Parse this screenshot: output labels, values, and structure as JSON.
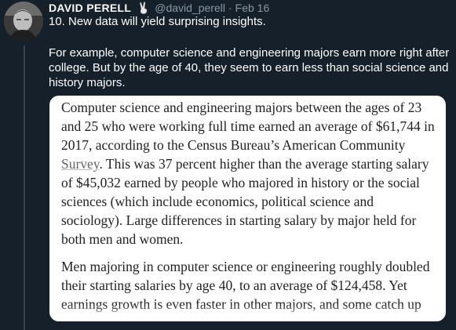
{
  "tweet": {
    "author_name": "DAVID PERELL",
    "author_emoji": "victory-hand-icon",
    "handle": "@david_perell",
    "separator": "·",
    "date": "Feb 16",
    "line1": "10. New data will yield surprising insights.",
    "line2": "For example, computer science and engineering majors earn more right after college. But by the age of 40, they seem to earn less than social science and history majors."
  },
  "article": {
    "para1_a": "Computer science and engineering majors between the ages of 23 and 25 who were working full time earned an average of $61,744 in 2017, according to the Census Bureau’s American Community ",
    "para1_link": "Survey",
    "para1_b": ". This was 37 percent higher than the average starting salary of $45,032 earned by people who majored in history or the social sciences (which include economics, political science and sociology). Large differences in starting salary by major held for both men and women.",
    "para2": "Men majoring in computer science or engineering roughly doubled their starting salaries by age 40, to an average of $124,458. Yet earnings growth is even faster in other majors, and some catch up"
  },
  "colors": {
    "background": "#15202b",
    "secondary_text": "#8899a6",
    "card_background": "#ffffff",
    "card_text": "#222222"
  }
}
